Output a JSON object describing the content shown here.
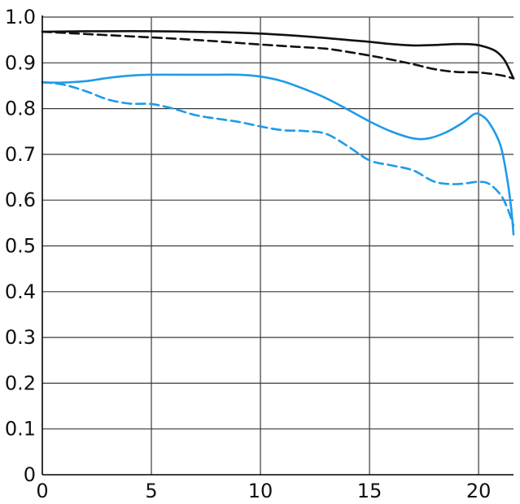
{
  "chart_data": {
    "type": "line",
    "title": "",
    "xlabel": "",
    "ylabel": "",
    "xlim": [
      0,
      21.6
    ],
    "ylim": [
      0,
      1.0
    ],
    "x_ticks": [
      0,
      5,
      10,
      15,
      20
    ],
    "x_tick_labels": [
      "0",
      "5",
      "10",
      "15",
      "20"
    ],
    "y_ticks": [
      0,
      0.1,
      0.2,
      0.3,
      0.4,
      0.5,
      0.6,
      0.7,
      0.8,
      0.9,
      1.0
    ],
    "y_tick_labels": [
      "0",
      "0.1",
      "0.2",
      "0.3",
      "0.4",
      "0.5",
      "0.6",
      "0.7",
      "0.8",
      "0.9",
      "1.0"
    ],
    "grid": true,
    "legend": "none",
    "series": [
      {
        "color": "#111111",
        "dash": "solid",
        "points": [
          [
            0,
            0.968
          ],
          [
            2,
            0.969
          ],
          [
            5,
            0.969
          ],
          [
            8,
            0.967
          ],
          [
            10,
            0.964
          ],
          [
            12,
            0.958
          ],
          [
            14,
            0.95
          ],
          [
            15,
            0.946
          ],
          [
            16,
            0.941
          ],
          [
            17,
            0.938
          ],
          [
            18,
            0.939
          ],
          [
            19,
            0.941
          ],
          [
            19.8,
            0.94
          ],
          [
            20.3,
            0.935
          ],
          [
            20.8,
            0.925
          ],
          [
            21.2,
            0.905
          ],
          [
            21.6,
            0.866
          ]
        ]
      },
      {
        "color": "#111111",
        "dash": "dashed",
        "points": [
          [
            0,
            0.968
          ],
          [
            2,
            0.963
          ],
          [
            4,
            0.958
          ],
          [
            6,
            0.953
          ],
          [
            8,
            0.947
          ],
          [
            10,
            0.94
          ],
          [
            12,
            0.934
          ],
          [
            13,
            0.931
          ],
          [
            14,
            0.924
          ],
          [
            15,
            0.916
          ],
          [
            16,
            0.907
          ],
          [
            17,
            0.897
          ],
          [
            18,
            0.886
          ],
          [
            19,
            0.88
          ],
          [
            20,
            0.879
          ],
          [
            21,
            0.873
          ],
          [
            21.6,
            0.866
          ]
        ]
      },
      {
        "color": "#1e9be8",
        "dash": "solid",
        "points": [
          [
            0,
            0.857
          ],
          [
            1,
            0.857
          ],
          [
            2,
            0.86
          ],
          [
            3,
            0.867
          ],
          [
            4,
            0.872
          ],
          [
            5,
            0.874
          ],
          [
            7,
            0.874
          ],
          [
            8,
            0.874
          ],
          [
            9,
            0.874
          ],
          [
            10,
            0.87
          ],
          [
            11,
            0.86
          ],
          [
            12,
            0.843
          ],
          [
            13,
            0.823
          ],
          [
            14,
            0.798
          ],
          [
            15,
            0.772
          ],
          [
            16,
            0.75
          ],
          [
            17,
            0.735
          ],
          [
            17.7,
            0.735
          ],
          [
            18.5,
            0.748
          ],
          [
            19.3,
            0.77
          ],
          [
            19.8,
            0.788
          ],
          [
            20.1,
            0.786
          ],
          [
            20.5,
            0.768
          ],
          [
            21,
            0.72
          ],
          [
            21.3,
            0.65
          ],
          [
            21.5,
            0.58
          ],
          [
            21.6,
            0.525
          ]
        ]
      },
      {
        "color": "#1e9be8",
        "dash": "dashed",
        "points": [
          [
            0,
            0.858
          ],
          [
            1,
            0.852
          ],
          [
            2,
            0.838
          ],
          [
            3,
            0.82
          ],
          [
            4,
            0.811
          ],
          [
            5,
            0.81
          ],
          [
            6,
            0.8
          ],
          [
            7,
            0.786
          ],
          [
            8,
            0.778
          ],
          [
            9,
            0.771
          ],
          [
            10,
            0.761
          ],
          [
            11,
            0.753
          ],
          [
            12,
            0.751
          ],
          [
            13,
            0.745
          ],
          [
            14,
            0.718
          ],
          [
            15,
            0.687
          ],
          [
            16,
            0.676
          ],
          [
            17,
            0.665
          ],
          [
            18,
            0.64
          ],
          [
            19,
            0.635
          ],
          [
            20,
            0.64
          ],
          [
            20.5,
            0.635
          ],
          [
            21,
            0.612
          ],
          [
            21.3,
            0.585
          ],
          [
            21.6,
            0.545
          ]
        ]
      }
    ]
  }
}
